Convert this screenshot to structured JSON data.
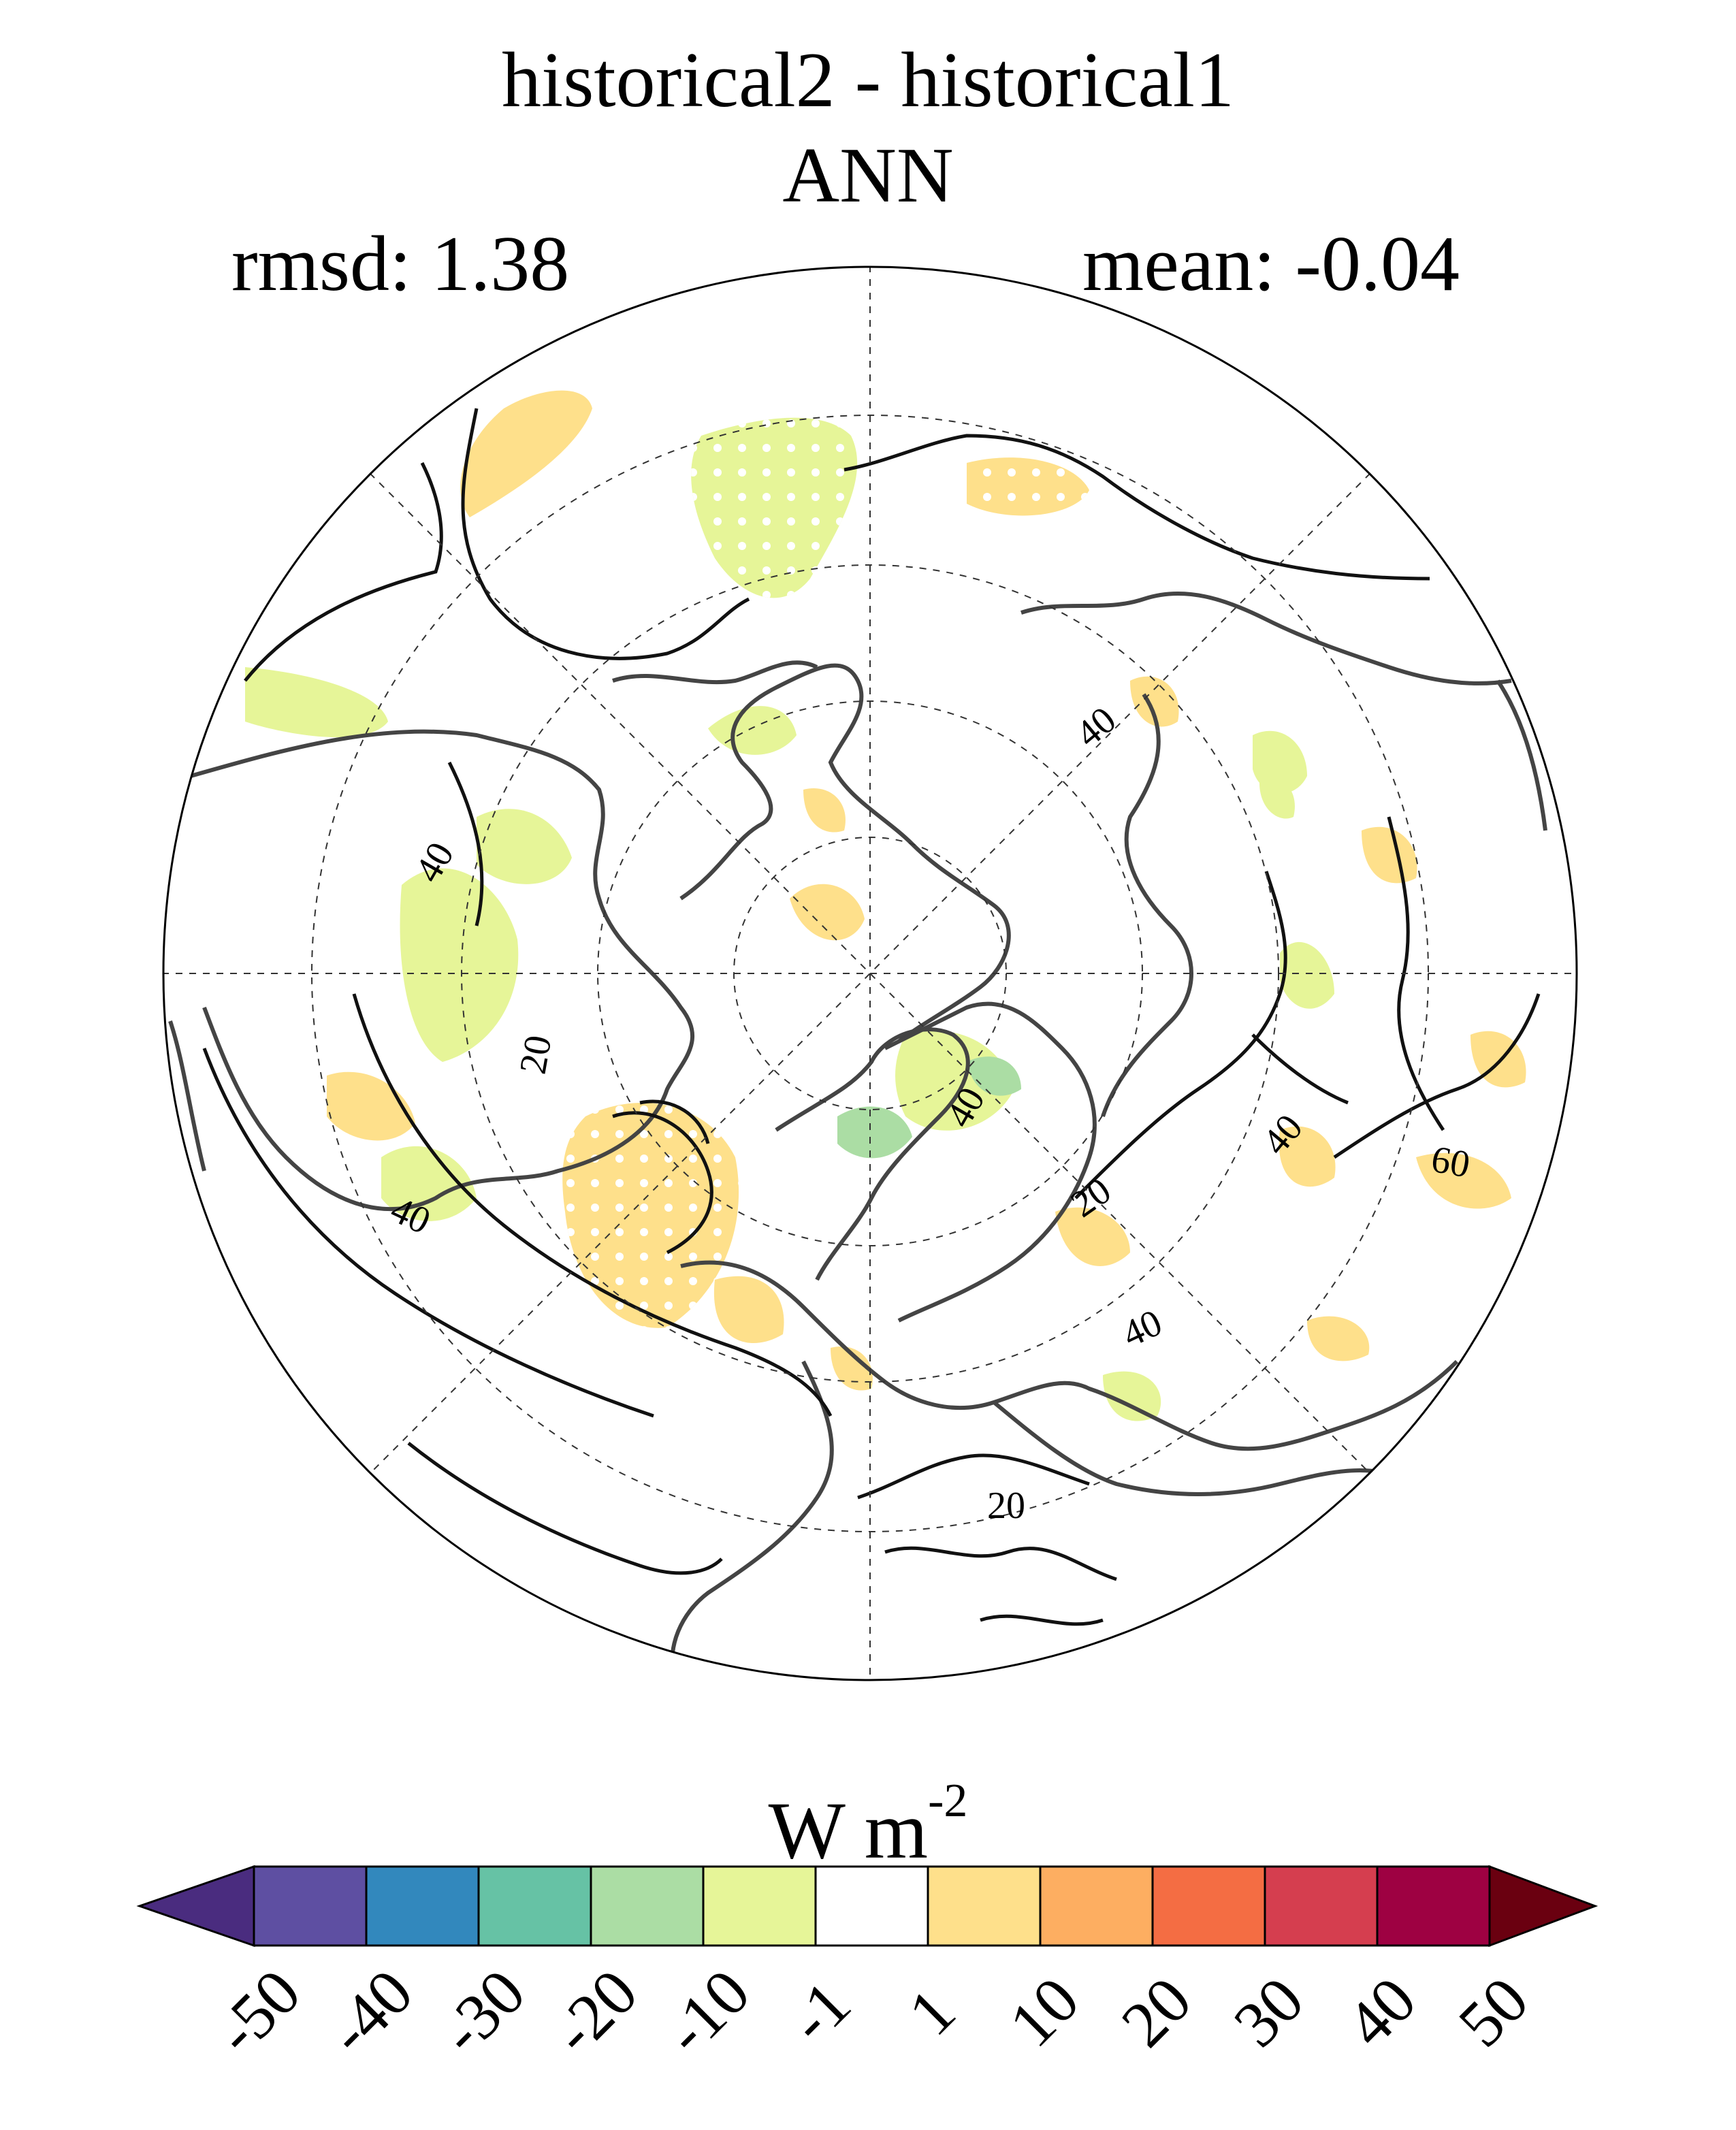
{
  "title": {
    "line1": "historical2 - historical1",
    "line2": "ANN"
  },
  "stats": {
    "rmsd_label": "rmsd: 1.38",
    "mean_label": "mean: -0.04"
  },
  "map": {
    "projection": "north-polar-stereographic",
    "contour_labels": [
      "40",
      "40",
      "40",
      "40",
      "40",
      "60",
      "20",
      "20",
      "20",
      "40"
    ]
  },
  "colorbar": {
    "units_base": "W m",
    "units_exp": "-2",
    "tick_labels": [
      "-50",
      "-40",
      "-30",
      "-20",
      "-10",
      "-1",
      "1",
      "10",
      "20",
      "30",
      "40",
      "50"
    ],
    "colors": [
      "#5e4fa2",
      "#3288bd",
      "#66c2a5",
      "#abdda4",
      "#e6f598",
      "#ffffff",
      "#fee08b",
      "#fdae61",
      "#f46d43",
      "#d53e4f",
      "#9e0142"
    ],
    "under_color": "#4a2c7f",
    "over_color": "#6a0010"
  }
}
